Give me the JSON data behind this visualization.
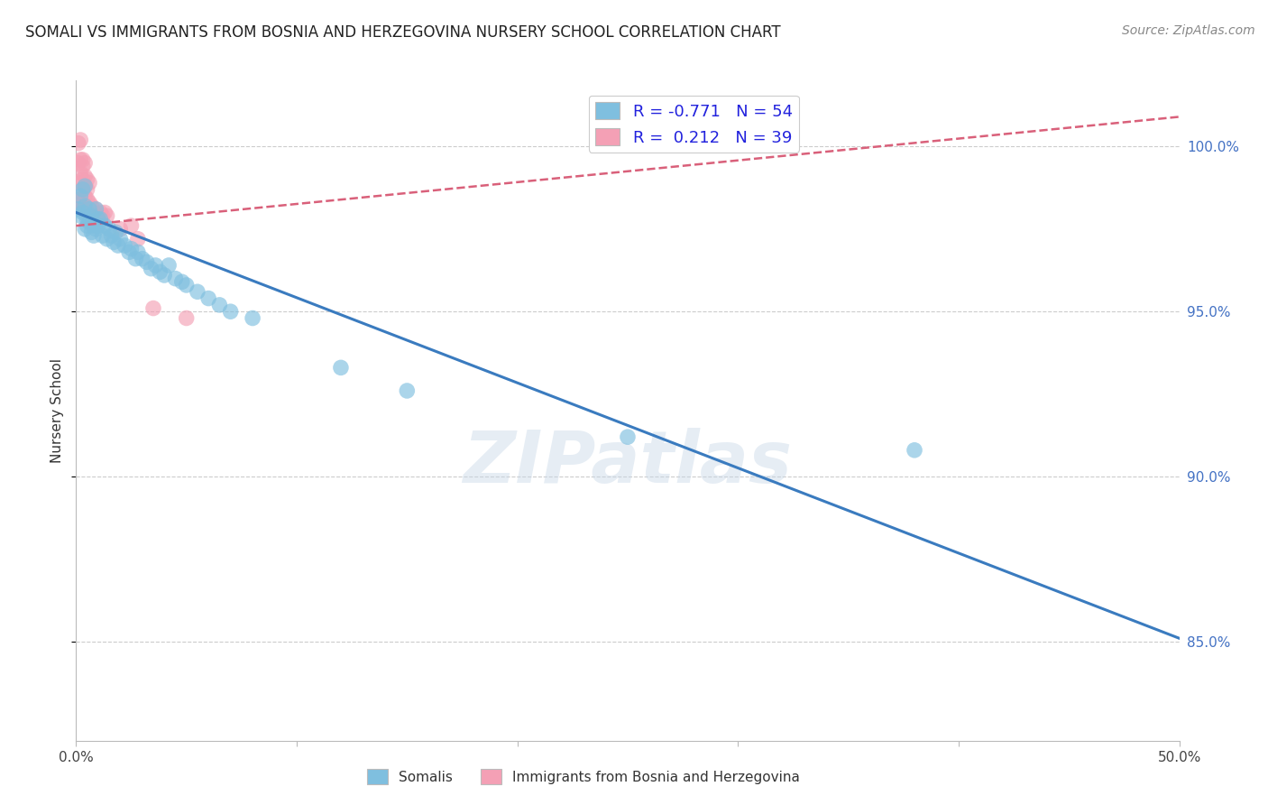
{
  "title": "SOMALI VS IMMIGRANTS FROM BOSNIA AND HERZEGOVINA NURSERY SCHOOL CORRELATION CHART",
  "source": "Source: ZipAtlas.com",
  "ylabel": "Nursery School",
  "xlim": [
    0.0,
    0.5
  ],
  "ylim": [
    0.82,
    1.02
  ],
  "xticks": [
    0.0,
    0.1,
    0.2,
    0.3,
    0.4,
    0.5
  ],
  "xticklabels": [
    "0.0%",
    "",
    "",
    "",
    "",
    "50.0%"
  ],
  "yticks": [
    0.85,
    0.9,
    0.95,
    1.0
  ],
  "yticklabels": [
    "85.0%",
    "90.0%",
    "95.0%",
    "100.0%"
  ],
  "legend_r1": "R = -0.771",
  "legend_n1": "N = 54",
  "legend_r2": "R =  0.212",
  "legend_n2": "N = 39",
  "blue_color": "#7fbfdf",
  "pink_color": "#f4a0b5",
  "blue_line_color": "#3a7bbf",
  "pink_line_color": "#d9607a",
  "somali_scatter": [
    [
      0.001,
      0.981
    ],
    [
      0.002,
      0.979
    ],
    [
      0.003,
      0.98
    ],
    [
      0.004,
      0.982
    ],
    [
      0.004,
      0.975
    ],
    [
      0.005,
      0.978
    ],
    [
      0.005,
      0.976
    ],
    [
      0.006,
      0.977
    ],
    [
      0.006,
      0.981
    ],
    [
      0.007,
      0.974
    ],
    [
      0.007,
      0.979
    ],
    [
      0.008,
      0.976
    ],
    [
      0.008,
      0.973
    ],
    [
      0.009,
      0.981
    ],
    [
      0.009,
      0.975
    ],
    [
      0.01,
      0.978
    ],
    [
      0.01,
      0.976
    ],
    [
      0.011,
      0.978
    ],
    [
      0.012,
      0.973
    ],
    [
      0.013,
      0.976
    ],
    [
      0.014,
      0.972
    ],
    [
      0.015,
      0.975
    ],
    [
      0.016,
      0.973
    ],
    [
      0.017,
      0.971
    ],
    [
      0.018,
      0.974
    ],
    [
      0.019,
      0.97
    ],
    [
      0.02,
      0.972
    ],
    [
      0.022,
      0.97
    ],
    [
      0.024,
      0.968
    ],
    [
      0.025,
      0.969
    ],
    [
      0.027,
      0.966
    ],
    [
      0.028,
      0.968
    ],
    [
      0.03,
      0.966
    ],
    [
      0.032,
      0.965
    ],
    [
      0.034,
      0.963
    ],
    [
      0.036,
      0.964
    ],
    [
      0.038,
      0.962
    ],
    [
      0.04,
      0.961
    ],
    [
      0.042,
      0.964
    ],
    [
      0.003,
      0.987
    ],
    [
      0.004,
      0.988
    ],
    [
      0.002,
      0.985
    ],
    [
      0.045,
      0.96
    ],
    [
      0.048,
      0.959
    ],
    [
      0.05,
      0.958
    ],
    [
      0.055,
      0.956
    ],
    [
      0.06,
      0.954
    ],
    [
      0.065,
      0.952
    ],
    [
      0.07,
      0.95
    ],
    [
      0.08,
      0.948
    ],
    [
      0.12,
      0.933
    ],
    [
      0.15,
      0.926
    ],
    [
      0.25,
      0.912
    ],
    [
      0.38,
      0.908
    ]
  ],
  "bosnia_scatter": [
    [
      0.001,
      0.982
    ],
    [
      0.002,
      0.984
    ],
    [
      0.002,
      0.981
    ],
    [
      0.003,
      0.983
    ],
    [
      0.003,
      0.986
    ],
    [
      0.004,
      0.985
    ],
    [
      0.004,
      0.982
    ],
    [
      0.005,
      0.984
    ],
    [
      0.005,
      0.98
    ],
    [
      0.006,
      0.983
    ],
    [
      0.006,
      0.981
    ],
    [
      0.007,
      0.982
    ],
    [
      0.008,
      0.98
    ],
    [
      0.009,
      0.981
    ],
    [
      0.01,
      0.979
    ],
    [
      0.011,
      0.98
    ],
    [
      0.012,
      0.979
    ],
    [
      0.013,
      0.98
    ],
    [
      0.014,
      0.979
    ],
    [
      0.002,
      0.989
    ],
    [
      0.003,
      0.99
    ],
    [
      0.004,
      0.991
    ],
    [
      0.004,
      0.988
    ],
    [
      0.005,
      0.99
    ],
    [
      0.005,
      0.987
    ],
    [
      0.006,
      0.989
    ],
    [
      0.001,
      0.995
    ],
    [
      0.002,
      0.996
    ],
    [
      0.003,
      0.994
    ],
    [
      0.002,
      0.992
    ],
    [
      0.003,
      0.996
    ],
    [
      0.004,
      0.995
    ],
    [
      0.02,
      0.975
    ],
    [
      0.025,
      0.976
    ],
    [
      0.028,
      0.972
    ],
    [
      0.035,
      0.951
    ],
    [
      0.05,
      0.948
    ],
    [
      0.001,
      1.001
    ],
    [
      0.002,
      1.002
    ]
  ],
  "somali_trendline": [
    [
      0.0,
      0.98
    ],
    [
      0.5,
      0.851
    ]
  ],
  "bosnia_trendline": [
    [
      0.0,
      0.976
    ],
    [
      0.5,
      1.009
    ]
  ]
}
